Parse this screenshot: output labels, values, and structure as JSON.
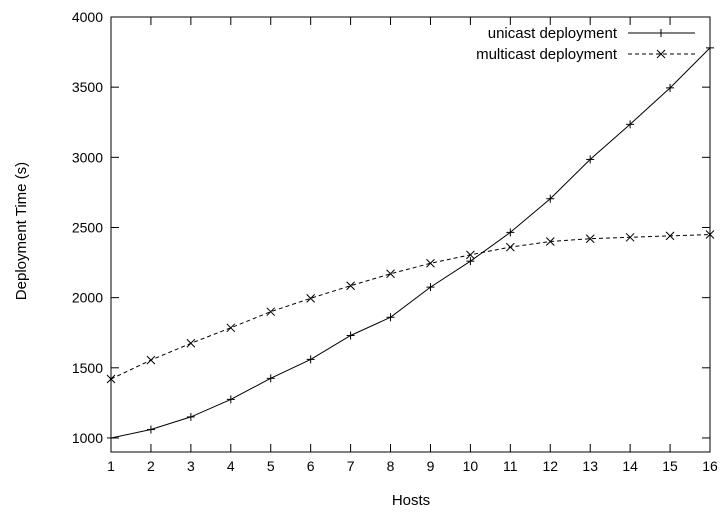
{
  "chart_data": {
    "type": "line",
    "title": "",
    "xlabel": "Hosts",
    "ylabel": "Deployment Time (s)",
    "xlim": [
      1,
      16
    ],
    "ylim": [
      900,
      4000
    ],
    "xticks": [
      1,
      2,
      3,
      4,
      5,
      6,
      7,
      8,
      9,
      10,
      11,
      12,
      13,
      14,
      15,
      16
    ],
    "yticks": [
      1000,
      1500,
      2000,
      2500,
      3000,
      3500,
      4000
    ],
    "grid": false,
    "legend_position": "top-right",
    "x": [
      1,
      2,
      3,
      4,
      5,
      6,
      7,
      8,
      9,
      10,
      11,
      12,
      13,
      14,
      15,
      16
    ],
    "series": [
      {
        "name": "unicast deployment",
        "marker": "plus",
        "line_style": "solid",
        "color": "#000000",
        "values": [
          1000,
          1060,
          1150,
          1275,
          1425,
          1560,
          1730,
          1860,
          2075,
          2260,
          2465,
          2705,
          2985,
          3235,
          3495,
          3780
        ]
      },
      {
        "name": "multicast deployment",
        "marker": "x",
        "line_style": "dashed",
        "color": "#000000",
        "values": [
          1420,
          1555,
          1675,
          1785,
          1900,
          1995,
          2085,
          2170,
          2245,
          2305,
          2360,
          2400,
          2420,
          2430,
          2440,
          2450
        ]
      }
    ]
  }
}
